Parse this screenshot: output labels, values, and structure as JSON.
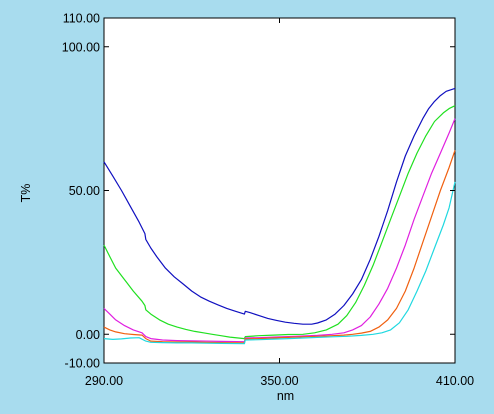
{
  "chart_data": {
    "type": "line",
    "title": "",
    "xlabel": "nm",
    "ylabel": "T%",
    "xlim": [
      290,
      410
    ],
    "ylim": [
      -10,
      110
    ],
    "grid": false,
    "background": "#a8dcee",
    "plot_background": "#ffffff",
    "x_ticks": [
      {
        "value": 290,
        "label": "290.00"
      },
      {
        "value": 350,
        "label": "350.00"
      },
      {
        "value": 410,
        "label": "410.00"
      }
    ],
    "y_ticks": [
      {
        "value": 110,
        "label": "110.00"
      },
      {
        "value": 100,
        "label": "100.00"
      },
      {
        "value": 50,
        "label": "50.00"
      },
      {
        "value": 0,
        "label": "0.00"
      },
      {
        "value": -10,
        "label": "-10.00"
      }
    ],
    "series": [
      {
        "color": "#1010c0",
        "points": [
          [
            290,
            60
          ],
          [
            293,
            55
          ],
          [
            296,
            50
          ],
          [
            299,
            44.5
          ],
          [
            302,
            39
          ],
          [
            304,
            35
          ],
          [
            304.3,
            33
          ],
          [
            306,
            30
          ],
          [
            308,
            27
          ],
          [
            311,
            23
          ],
          [
            314,
            20
          ],
          [
            317,
            17.5
          ],
          [
            320,
            15
          ],
          [
            323,
            13
          ],
          [
            326,
            11.5
          ],
          [
            329,
            10.2
          ],
          [
            332,
            9
          ],
          [
            335,
            8
          ],
          [
            338,
            7
          ],
          [
            338.3,
            8
          ],
          [
            340,
            7.5
          ],
          [
            343,
            6.5
          ],
          [
            346,
            5.5
          ],
          [
            349,
            4.8
          ],
          [
            352,
            4.2
          ],
          [
            355,
            3.8
          ],
          [
            358,
            3.5
          ],
          [
            361,
            3.5
          ],
          [
            363,
            3.9
          ],
          [
            366,
            5
          ],
          [
            369,
            7
          ],
          [
            372,
            10
          ],
          [
            375,
            14
          ],
          [
            378,
            19
          ],
          [
            381,
            26
          ],
          [
            384,
            34
          ],
          [
            387,
            43
          ],
          [
            390,
            53
          ],
          [
            393,
            62
          ],
          [
            396,
            69
          ],
          [
            399,
            75
          ],
          [
            401,
            78.5
          ],
          [
            403,
            81
          ],
          [
            405,
            83
          ],
          [
            407,
            84.5
          ],
          [
            410,
            85.5
          ]
        ]
      },
      {
        "color": "#20e020",
        "points": [
          [
            290,
            31
          ],
          [
            292,
            27
          ],
          [
            294,
            23
          ],
          [
            297,
            19
          ],
          [
            300,
            15
          ],
          [
            303,
            11.5
          ],
          [
            304,
            10
          ],
          [
            304.3,
            8.5
          ],
          [
            306,
            7
          ],
          [
            309,
            5
          ],
          [
            312,
            3.5
          ],
          [
            315,
            2.5
          ],
          [
            318,
            1.7
          ],
          [
            321,
            1
          ],
          [
            324,
            0.5
          ],
          [
            327,
            0
          ],
          [
            330,
            -0.5
          ],
          [
            333,
            -1
          ],
          [
            338,
            -1.5
          ],
          [
            338.3,
            -0.8
          ],
          [
            343,
            -0.5
          ],
          [
            348,
            -0.3
          ],
          [
            353,
            -0.1
          ],
          [
            358,
            0
          ],
          [
            362,
            0.5
          ],
          [
            366,
            1.5
          ],
          [
            370,
            3.5
          ],
          [
            373,
            6.5
          ],
          [
            376,
            11
          ],
          [
            379,
            17
          ],
          [
            382,
            24
          ],
          [
            385,
            32
          ],
          [
            388,
            40
          ],
          [
            391,
            48
          ],
          [
            394,
            56
          ],
          [
            397,
            63
          ],
          [
            400,
            69
          ],
          [
            403,
            74
          ],
          [
            406,
            77
          ],
          [
            408,
            78.5
          ],
          [
            410,
            79.5
          ]
        ]
      },
      {
        "color": "#e020e0",
        "points": [
          [
            290,
            9
          ],
          [
            292,
            7
          ],
          [
            294,
            5
          ],
          [
            297,
            3
          ],
          [
            300,
            1.5
          ],
          [
            303,
            0.5
          ],
          [
            304.3,
            -0.8
          ],
          [
            306,
            -1.5
          ],
          [
            310,
            -2
          ],
          [
            315,
            -2.2
          ],
          [
            320,
            -2.3
          ],
          [
            325,
            -2.4
          ],
          [
            330,
            -2.5
          ],
          [
            338,
            -2.6
          ],
          [
            338.3,
            -1.3
          ],
          [
            343,
            -1.2
          ],
          [
            348,
            -1
          ],
          [
            353,
            -0.8
          ],
          [
            358,
            -0.6
          ],
          [
            363,
            -0.4
          ],
          [
            368,
            0
          ],
          [
            372,
            0.5
          ],
          [
            375,
            1.5
          ],
          [
            378,
            3
          ],
          [
            381,
            6
          ],
          [
            384,
            10.5
          ],
          [
            387,
            16
          ],
          [
            390,
            23
          ],
          [
            393,
            31
          ],
          [
            396,
            40
          ],
          [
            399,
            48
          ],
          [
            402,
            56
          ],
          [
            405,
            63
          ],
          [
            408,
            70
          ],
          [
            410,
            75
          ]
        ]
      },
      {
        "color": "#f06010",
        "points": [
          [
            290,
            2.5
          ],
          [
            292,
            1.5
          ],
          [
            294,
            0.8
          ],
          [
            297,
            0.2
          ],
          [
            300,
            -0.1
          ],
          [
            303,
            -0.3
          ],
          [
            304.3,
            -1.5
          ],
          [
            306,
            -2.4
          ],
          [
            310,
            -2.6
          ],
          [
            315,
            -2.7
          ],
          [
            320,
            -2.7
          ],
          [
            325,
            -2.8
          ],
          [
            330,
            -2.9
          ],
          [
            338,
            -3
          ],
          [
            338.3,
            -1.6
          ],
          [
            343,
            -1.5
          ],
          [
            348,
            -1.3
          ],
          [
            353,
            -1.1
          ],
          [
            358,
            -0.9
          ],
          [
            363,
            -0.7
          ],
          [
            368,
            -0.5
          ],
          [
            372,
            -0.3
          ],
          [
            375,
            0
          ],
          [
            378,
            0.4
          ],
          [
            381,
            1
          ],
          [
            384,
            2.5
          ],
          [
            387,
            5
          ],
          [
            390,
            9
          ],
          [
            393,
            15
          ],
          [
            396,
            23
          ],
          [
            399,
            32
          ],
          [
            402,
            41
          ],
          [
            405,
            50
          ],
          [
            408,
            58
          ],
          [
            410,
            64
          ]
        ]
      },
      {
        "color": "#20d8e0",
        "points": [
          [
            290,
            -1.5
          ],
          [
            293,
            -1.8
          ],
          [
            296,
            -1.6
          ],
          [
            299,
            -1.3
          ],
          [
            302,
            -1.2
          ],
          [
            304.3,
            -2.4
          ],
          [
            306,
            -2.8
          ],
          [
            310,
            -2.9
          ],
          [
            315,
            -3
          ],
          [
            320,
            -3
          ],
          [
            325,
            -3.1
          ],
          [
            330,
            -3.2
          ],
          [
            338,
            -3.3
          ],
          [
            338.3,
            -2
          ],
          [
            343,
            -1.9
          ],
          [
            348,
            -1.7
          ],
          [
            353,
            -1.5
          ],
          [
            358,
            -1.3
          ],
          [
            363,
            -1.1
          ],
          [
            368,
            -0.9
          ],
          [
            373,
            -0.7
          ],
          [
            378,
            -0.4
          ],
          [
            382,
            0
          ],
          [
            385,
            0.5
          ],
          [
            388,
            1.5
          ],
          [
            391,
            4
          ],
          [
            394,
            8.5
          ],
          [
            397,
            15
          ],
          [
            400,
            22
          ],
          [
            403,
            30
          ],
          [
            406,
            38
          ],
          [
            408,
            44
          ],
          [
            410,
            53
          ]
        ]
      }
    ]
  }
}
